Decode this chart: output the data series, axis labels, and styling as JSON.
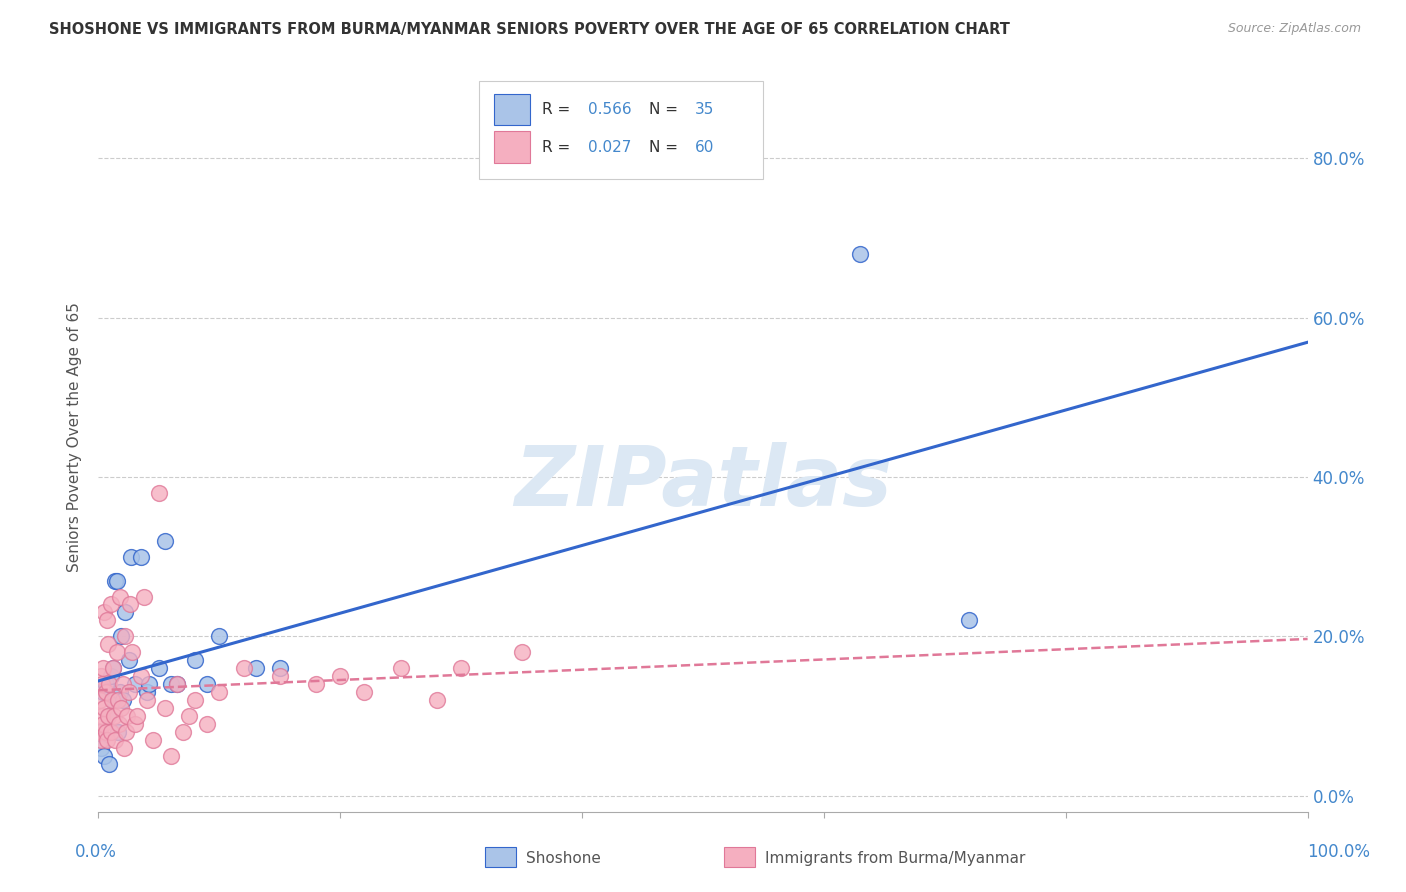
{
  "title": "SHOSHONE VS IMMIGRANTS FROM BURMA/MYANMAR SENIORS POVERTY OVER THE AGE OF 65 CORRELATION CHART",
  "source": "Source: ZipAtlas.com",
  "ylabel": "Seniors Poverty Over the Age of 65",
  "legend_label1": "Shoshone",
  "legend_label2": "Immigrants from Burma/Myanmar",
  "R1": 0.566,
  "N1": 35,
  "R2": 0.027,
  "N2": 60,
  "color1": "#aac4e8",
  "color2": "#f5afc0",
  "line_color1": "#3366cc",
  "line_color2": "#e07898",
  "xlim": [
    0.0,
    1.0
  ],
  "ylim": [
    -0.02,
    0.92
  ],
  "shoshone_x": [
    0.001,
    0.002,
    0.004,
    0.005,
    0.006,
    0.008,
    0.009,
    0.01,
    0.011,
    0.012,
    0.013,
    0.014,
    0.015,
    0.016,
    0.018,
    0.019,
    0.02,
    0.022,
    0.025,
    0.027,
    0.03,
    0.035,
    0.04,
    0.042,
    0.05,
    0.055,
    0.06,
    0.065,
    0.08,
    0.09,
    0.1,
    0.13,
    0.15,
    0.63,
    0.72
  ],
  "shoshone_y": [
    0.08,
    0.06,
    0.13,
    0.05,
    0.14,
    0.1,
    0.04,
    0.15,
    0.12,
    0.16,
    0.12,
    0.27,
    0.27,
    0.08,
    0.13,
    0.2,
    0.12,
    0.23,
    0.17,
    0.3,
    0.14,
    0.3,
    0.13,
    0.14,
    0.16,
    0.32,
    0.14,
    0.14,
    0.17,
    0.14,
    0.2,
    0.16,
    0.16,
    0.68,
    0.22
  ],
  "burma_x": [
    0.001,
    0.001,
    0.002,
    0.002,
    0.003,
    0.003,
    0.004,
    0.004,
    0.005,
    0.005,
    0.006,
    0.006,
    0.007,
    0.007,
    0.008,
    0.008,
    0.009,
    0.01,
    0.01,
    0.011,
    0.012,
    0.013,
    0.014,
    0.015,
    0.016,
    0.017,
    0.018,
    0.019,
    0.02,
    0.021,
    0.022,
    0.023,
    0.024,
    0.025,
    0.026,
    0.028,
    0.03,
    0.032,
    0.035,
    0.038,
    0.04,
    0.045,
    0.05,
    0.055,
    0.06,
    0.065,
    0.07,
    0.075,
    0.08,
    0.09,
    0.1,
    0.12,
    0.15,
    0.18,
    0.2,
    0.22,
    0.25,
    0.28,
    0.3,
    0.35
  ],
  "burma_y": [
    0.12,
    0.08,
    0.15,
    0.07,
    0.1,
    0.14,
    0.09,
    0.16,
    0.11,
    0.23,
    0.13,
    0.08,
    0.22,
    0.07,
    0.1,
    0.19,
    0.14,
    0.08,
    0.24,
    0.12,
    0.16,
    0.1,
    0.07,
    0.18,
    0.12,
    0.09,
    0.25,
    0.11,
    0.14,
    0.06,
    0.2,
    0.08,
    0.1,
    0.13,
    0.24,
    0.18,
    0.09,
    0.1,
    0.15,
    0.25,
    0.12,
    0.07,
    0.38,
    0.11,
    0.05,
    0.14,
    0.08,
    0.1,
    0.12,
    0.09,
    0.13,
    0.16,
    0.15,
    0.14,
    0.15,
    0.13,
    0.16,
    0.12,
    0.16,
    0.18
  ],
  "background_color": "#ffffff",
  "grid_color": "#cccccc",
  "axis_color": "#4488cc",
  "title_color": "#333333",
  "source_color": "#999999",
  "ylabel_color": "#555555",
  "watermark_color": "#dce8f4",
  "y_ticks": [
    0.0,
    0.2,
    0.4,
    0.6,
    0.8
  ],
  "y_tick_labels": [
    "0.0%",
    "20.0%",
    "40.0%",
    "60.0%",
    "80.0%"
  ]
}
